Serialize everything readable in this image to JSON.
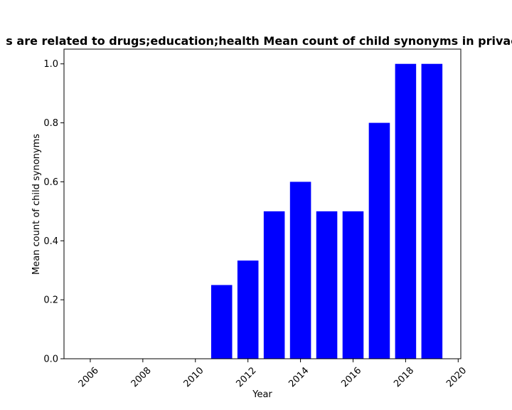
{
  "chart_data": {
    "type": "bar",
    "title": "s are related to drugs;education;health Mean count of child synonyms in privac",
    "xlabel": "Year",
    "ylabel": "Mean count of child synonyms",
    "x": [
      2011,
      2012,
      2013,
      2014,
      2015,
      2016,
      2017,
      2018,
      2019
    ],
    "values": [
      0.25,
      0.333,
      0.5,
      0.6,
      0.5,
      0.5,
      0.8,
      1.0,
      1.0
    ],
    "xlim": [
      2005,
      2020.1
    ],
    "ylim": [
      0,
      1.05
    ],
    "xticks": [
      2006,
      2008,
      2010,
      2012,
      2014,
      2016,
      2018,
      2020
    ],
    "yticks": [
      0.0,
      0.2,
      0.4,
      0.6,
      0.8,
      1.0
    ],
    "ytick_labels": [
      "0.0",
      "0.2",
      "0.4",
      "0.6",
      "0.8",
      "1.0"
    ],
    "bar_color": "#0000ff",
    "grid": false,
    "legend": "none"
  }
}
